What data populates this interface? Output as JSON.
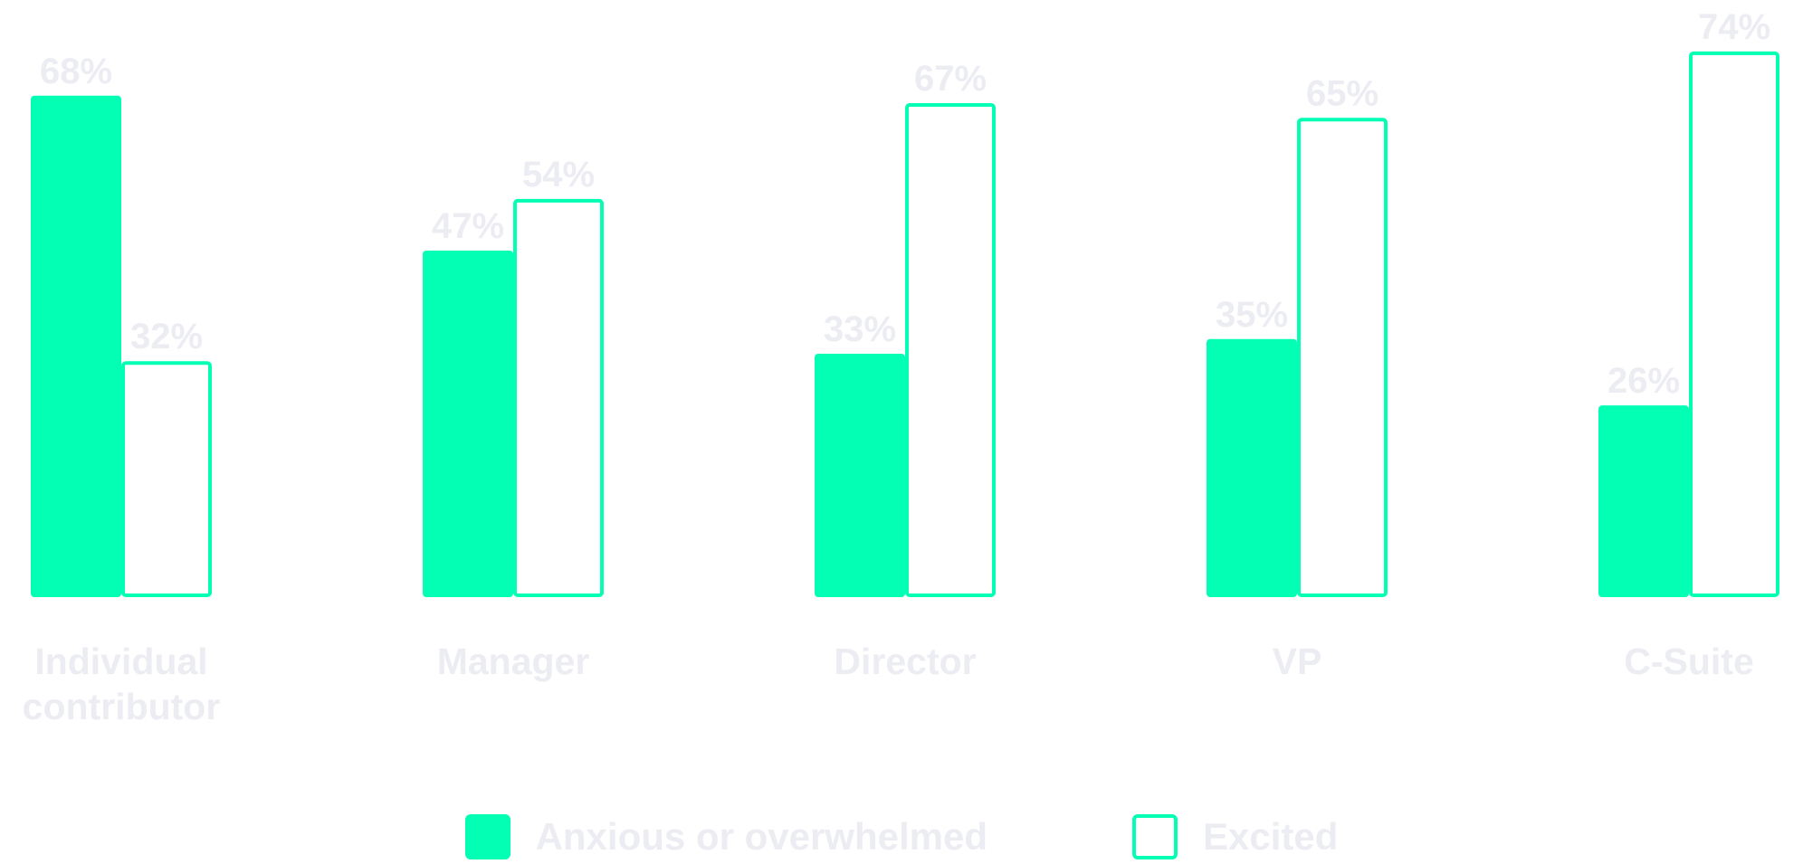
{
  "chart_data": {
    "type": "bar",
    "title": "",
    "xlabel": "",
    "ylabel": "",
    "ylim": [
      0,
      74
    ],
    "grid": false,
    "legend_position": "bottom-center",
    "categories": [
      [
        "Individual",
        "contributor"
      ],
      [
        "Manager"
      ],
      [
        "Director"
      ],
      [
        "VP"
      ],
      [
        "C-Suite"
      ]
    ],
    "series": [
      {
        "name": "Anxious or overwhelmed",
        "style": "filled",
        "values": [
          68,
          47,
          33,
          35,
          26
        ],
        "labels": [
          "68%",
          "47%",
          "33%",
          "35%",
          "26%"
        ]
      },
      {
        "name": "Excited",
        "style": "outline",
        "values": [
          32,
          54,
          67,
          65,
          74
        ],
        "labels": [
          "32%",
          "54%",
          "67%",
          "65%",
          "74%"
        ]
      }
    ],
    "colors": {
      "accent": "#02ffb3",
      "outline_fill": "#ffffff",
      "text": "#ececf3"
    }
  }
}
